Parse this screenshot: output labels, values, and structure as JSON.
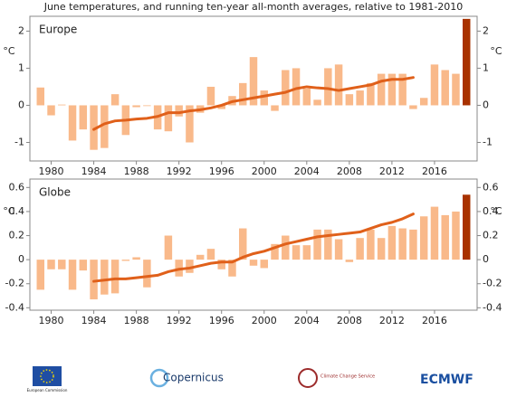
{
  "title": "June temperatures, and running ten-year all-month averages, relative to 1981-2010",
  "chart_data": [
    {
      "type": "bar",
      "panel_label": "Europe",
      "y_label": "°C",
      "mirror_y_axis": true,
      "xlim": [
        1978,
        2020
      ],
      "xticks": [
        1980,
        1984,
        1988,
        1992,
        1996,
        2000,
        2004,
        2008,
        2012,
        2016
      ],
      "ylim": [
        -1.5,
        2.4
      ],
      "yticks": [
        -1,
        0,
        1,
        2
      ],
      "series": [
        {
          "type": "bar",
          "color": "#f9b98a",
          "x": [
            1979,
            1980,
            1981,
            1982,
            1983,
            1984,
            1985,
            1986,
            1987,
            1988,
            1989,
            1990,
            1991,
            1992,
            1993,
            1994,
            1995,
            1996,
            1997,
            1998,
            1999,
            2000,
            2001,
            2002,
            2003,
            2004,
            2005,
            2006,
            2007,
            2008,
            2009,
            2010,
            2011,
            2012,
            2013,
            2014,
            2015,
            2016,
            2017,
            2018
          ],
          "values": [
            0.48,
            -0.27,
            0.02,
            -0.95,
            -0.65,
            -1.2,
            -1.15,
            0.3,
            -0.8,
            -0.05,
            -0.02,
            -0.65,
            -0.7,
            -0.3,
            -1.0,
            -0.2,
            0.5,
            -0.1,
            0.25,
            0.6,
            1.3,
            0.4,
            -0.15,
            0.95,
            1.0,
            0.45,
            0.15,
            1.0,
            1.1,
            0.3,
            0.4,
            0.6,
            0.85,
            0.85,
            0.85,
            -0.1,
            0.2,
            1.1,
            0.95,
            0.85
          ]
        },
        {
          "type": "bar",
          "color": "#a83200",
          "x": [
            2019
          ],
          "values": [
            2.33
          ]
        },
        {
          "type": "line",
          "color": "#e0601a",
          "x": [
            1984,
            1985,
            1986,
            1987,
            1988,
            1989,
            1990,
            1991,
            1992,
            1993,
            1994,
            1995,
            1996,
            1997,
            1998,
            1999,
            2000,
            2001,
            2002,
            2003,
            2004,
            2005,
            2006,
            2007,
            2008,
            2009,
            2010,
            2011,
            2012,
            2013,
            2014
          ],
          "values": [
            -0.65,
            -0.5,
            -0.42,
            -0.4,
            -0.37,
            -0.35,
            -0.3,
            -0.2,
            -0.2,
            -0.15,
            -0.12,
            -0.07,
            0.0,
            0.1,
            0.15,
            0.2,
            0.25,
            0.3,
            0.35,
            0.45,
            0.5,
            0.47,
            0.45,
            0.4,
            0.45,
            0.5,
            0.55,
            0.65,
            0.7,
            0.7,
            0.75
          ]
        }
      ]
    },
    {
      "type": "bar",
      "panel_label": "Globe",
      "y_label": "°C",
      "mirror_y_axis": true,
      "xlim": [
        1978,
        2020
      ],
      "xticks": [
        1980,
        1984,
        1988,
        1992,
        1996,
        2000,
        2004,
        2008,
        2012,
        2016
      ],
      "ylim": [
        -0.42,
        0.67
      ],
      "yticks": [
        -0.4,
        -0.2,
        0,
        0.2,
        0.4,
        0.6
      ],
      "series": [
        {
          "type": "bar",
          "color": "#f9b98a",
          "x": [
            1979,
            1980,
            1981,
            1982,
            1983,
            1984,
            1985,
            1986,
            1987,
            1988,
            1989,
            1990,
            1991,
            1992,
            1993,
            1994,
            1995,
            1996,
            1997,
            1998,
            1999,
            2000,
            2001,
            2002,
            2003,
            2004,
            2005,
            2006,
            2007,
            2008,
            2009,
            2010,
            2011,
            2012,
            2013,
            2014,
            2015,
            2016,
            2017,
            2018
          ],
          "values": [
            -0.25,
            -0.08,
            -0.08,
            -0.25,
            -0.09,
            -0.33,
            -0.29,
            -0.28,
            -0.01,
            0.02,
            -0.23,
            0.0,
            0.2,
            -0.14,
            -0.11,
            0.04,
            0.09,
            -0.08,
            -0.14,
            0.26,
            -0.05,
            -0.07,
            0.13,
            0.2,
            0.12,
            0.12,
            0.25,
            0.25,
            0.17,
            -0.02,
            0.18,
            0.25,
            0.18,
            0.28,
            0.26,
            0.25,
            0.36,
            0.44,
            0.37,
            0.4
          ]
        },
        {
          "type": "bar",
          "color": "#a83200",
          "x": [
            2019
          ],
          "values": [
            0.54
          ]
        },
        {
          "type": "line",
          "color": "#e0601a",
          "x": [
            1984,
            1985,
            1986,
            1987,
            1988,
            1989,
            1990,
            1991,
            1992,
            1993,
            1994,
            1995,
            1996,
            1997,
            1998,
            1999,
            2000,
            2001,
            2002,
            2003,
            2004,
            2005,
            2006,
            2007,
            2008,
            2009,
            2010,
            2011,
            2012,
            2013,
            2014
          ],
          "values": [
            -0.18,
            -0.17,
            -0.16,
            -0.16,
            -0.15,
            -0.14,
            -0.13,
            -0.1,
            -0.08,
            -0.07,
            -0.05,
            -0.03,
            -0.02,
            -0.02,
            0.02,
            0.05,
            0.07,
            0.1,
            0.13,
            0.15,
            0.17,
            0.19,
            0.2,
            0.21,
            0.22,
            0.23,
            0.26,
            0.29,
            0.31,
            0.34,
            0.38
          ]
        }
      ]
    }
  ],
  "footer": {
    "logos": [
      "European Commission",
      "Copernicus",
      "Climate Change Service",
      "ECMWF"
    ]
  }
}
